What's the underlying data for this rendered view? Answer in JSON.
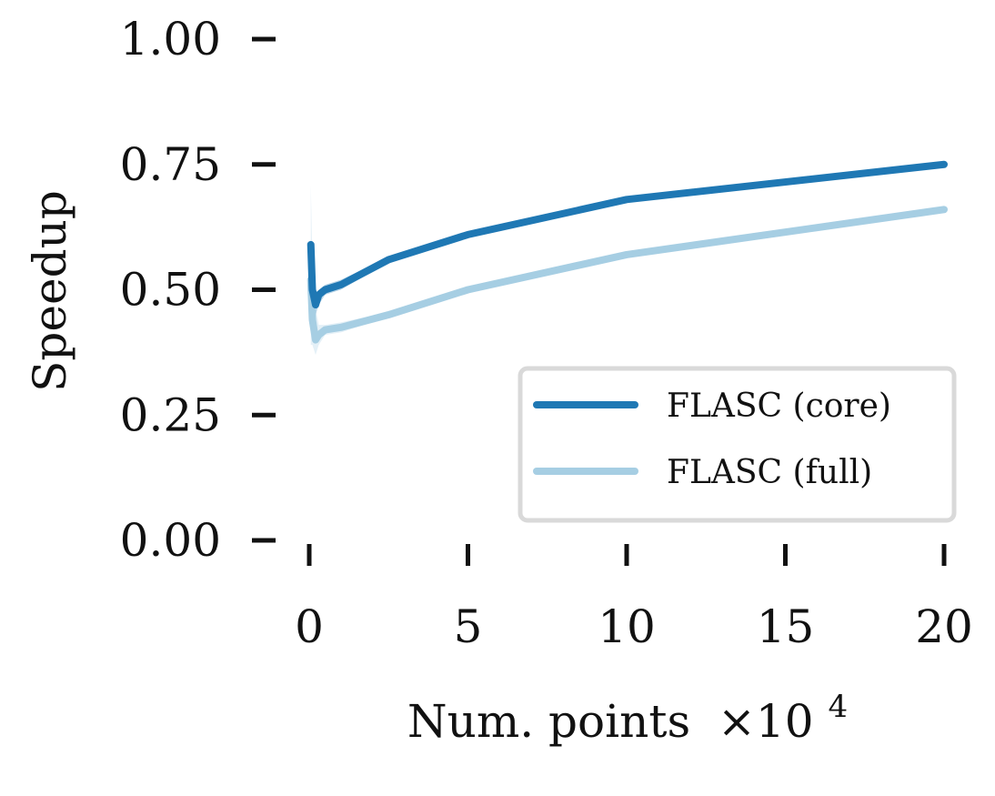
{
  "chart_data": {
    "type": "line",
    "title": "",
    "xlabel": "Num. points",
    "xlabel_multiplier": "×10",
    "xlabel_exponent": "4",
    "ylabel": "Speedup",
    "xlim": [
      0,
      20
    ],
    "ylim": [
      0,
      1
    ],
    "xticks": [
      0,
      5,
      10,
      15,
      20
    ],
    "xtick_labels": [
      "0",
      "5",
      "10",
      "15",
      "20"
    ],
    "yticks": [
      0,
      0.25,
      0.5,
      0.75,
      1.0
    ],
    "ytick_labels": [
      "0.00",
      "0.25",
      "0.50",
      "0.75",
      "1.00"
    ],
    "grid": false,
    "legend_position": "lower-right",
    "series": [
      {
        "name": "FLASC (core)",
        "color": "#1f78b4",
        "x": [
          0.05,
          0.1,
          0.2,
          0.3,
          0.5,
          1.0,
          2.5,
          5.0,
          10.0,
          20.0
        ],
        "y": [
          0.59,
          0.5,
          0.47,
          0.49,
          0.5,
          0.51,
          0.56,
          0.61,
          0.68,
          0.75
        ],
        "band_upper": [
          0.6,
          0.52,
          0.49,
          0.5,
          0.51,
          0.52,
          0.565,
          0.615,
          0.685,
          0.755
        ],
        "band_lower": [
          0.57,
          0.48,
          0.45,
          0.47,
          0.49,
          0.5,
          0.555,
          0.605,
          0.675,
          0.745
        ]
      },
      {
        "name": "FLASC (full)",
        "color": "#a6cee3",
        "x": [
          0.05,
          0.1,
          0.2,
          0.3,
          0.5,
          1.0,
          2.5,
          5.0,
          10.0,
          20.0
        ],
        "y": [
          0.52,
          0.44,
          0.4,
          0.41,
          0.42,
          0.425,
          0.45,
          0.5,
          0.57,
          0.66
        ],
        "band_upper": [
          0.71,
          0.55,
          0.46,
          0.43,
          0.43,
          0.435,
          0.455,
          0.505,
          0.575,
          0.665
        ],
        "band_lower": [
          0.39,
          0.39,
          0.37,
          0.39,
          0.41,
          0.415,
          0.445,
          0.495,
          0.565,
          0.655
        ]
      }
    ]
  }
}
